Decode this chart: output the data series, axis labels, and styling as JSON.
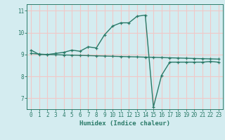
{
  "line1_x": [
    0,
    1,
    2,
    3,
    4,
    5,
    6,
    7,
    8,
    9,
    10,
    11,
    12,
    13,
    14,
    15,
    16,
    17,
    18,
    19,
    20,
    21,
    22,
    23
  ],
  "line1_y": [
    9.2,
    9.0,
    9.0,
    9.05,
    9.1,
    9.2,
    9.15,
    9.35,
    9.3,
    9.9,
    10.3,
    10.45,
    10.45,
    10.75,
    10.8,
    6.6,
    8.05,
    8.65,
    8.65,
    8.65,
    8.65,
    8.65,
    8.68,
    8.65
  ],
  "line2_x": [
    0,
    1,
    2,
    3,
    4,
    5,
    6,
    7,
    8,
    9,
    10,
    11,
    12,
    13,
    14,
    15,
    16,
    17,
    18,
    19,
    20,
    21,
    22,
    23
  ],
  "line2_y": [
    9.05,
    9.02,
    9.0,
    8.99,
    8.98,
    8.97,
    8.96,
    8.95,
    8.94,
    8.93,
    8.92,
    8.91,
    8.9,
    8.89,
    8.88,
    8.87,
    8.86,
    8.85,
    8.84,
    8.83,
    8.82,
    8.81,
    8.8,
    8.79
  ],
  "line_color": "#2a7a68",
  "bg_color": "#d4ecf0",
  "grid_color": "#f0c8c8",
  "xlabel": "Humidex (Indice chaleur)",
  "yticks": [
    7,
    8,
    9,
    10,
    11
  ],
  "xticks": [
    0,
    1,
    2,
    3,
    4,
    5,
    6,
    7,
    8,
    9,
    10,
    11,
    12,
    13,
    14,
    15,
    16,
    17,
    18,
    19,
    20,
    21,
    22,
    23
  ],
  "ylim": [
    6.5,
    11.3
  ],
  "xlim": [
    -0.5,
    23.5
  ]
}
